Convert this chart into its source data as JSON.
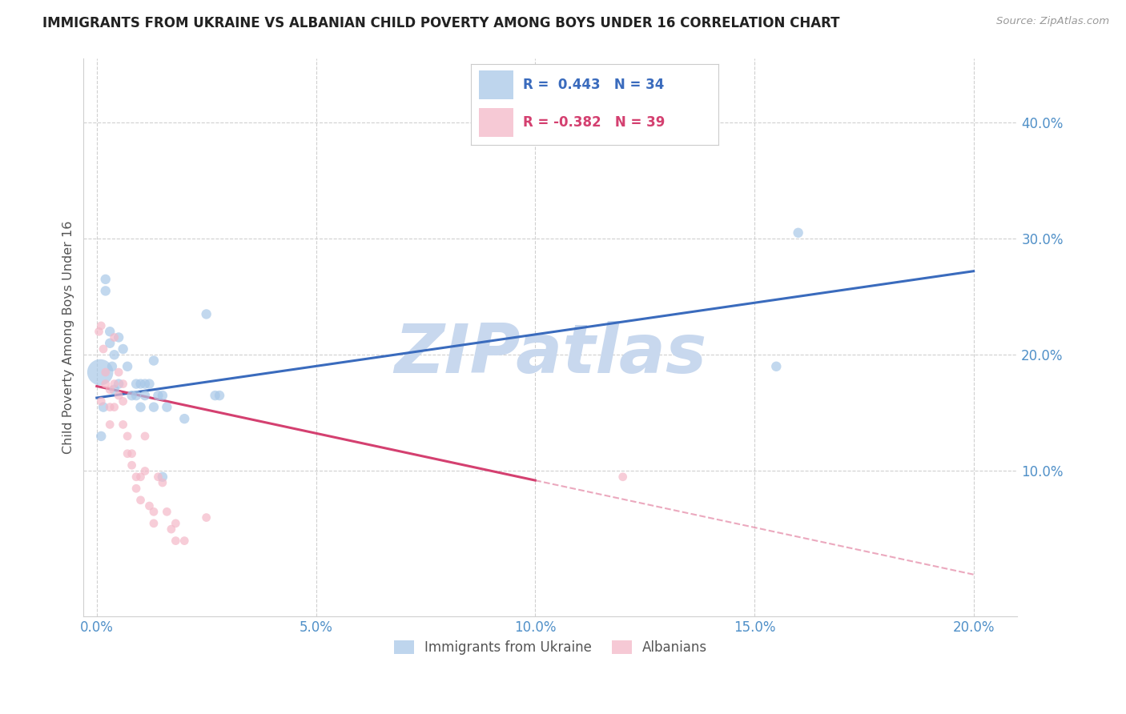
{
  "title": "IMMIGRANTS FROM UKRAINE VS ALBANIAN CHILD POVERTY AMONG BOYS UNDER 16 CORRELATION CHART",
  "source": "Source: ZipAtlas.com",
  "ylabel": "Child Poverty Among Boys Under 16",
  "x_tick_labels": [
    "0.0%",
    "5.0%",
    "10.0%",
    "15.0%",
    "20.0%"
  ],
  "x_tick_values": [
    0.0,
    0.05,
    0.1,
    0.15,
    0.2
  ],
  "y_tick_labels": [
    "10.0%",
    "20.0%",
    "30.0%",
    "40.0%"
  ],
  "y_tick_values": [
    0.1,
    0.2,
    0.3,
    0.4
  ],
  "xlim": [
    -0.003,
    0.21
  ],
  "ylim": [
    -0.025,
    0.455
  ],
  "legend_label1": "R =  0.443   N = 34",
  "legend_label2": "R = -0.382   N = 39",
  "legend_bottom1": "Immigrants from Ukraine",
  "legend_bottom2": "Albanians",
  "ukraine_fill": "#a8c8e8",
  "albanian_fill": "#f4b8c8",
  "ukraine_line": "#3a6bbd",
  "albanian_line": "#d44070",
  "bg_color": "#ffffff",
  "grid_color": "#d0d0d0",
  "watermark": "ZIPatlas",
  "watermark_color": "#c8d8ee",
  "title_color": "#222222",
  "tick_color": "#5090c8",
  "ylabel_color": "#555555",
  "source_color": "#999999",
  "ukraine_line_x0": 0.0,
  "ukraine_line_x1": 0.2,
  "ukraine_line_y0": 0.163,
  "ukraine_line_y1": 0.272,
  "albanian_line_x0": 0.0,
  "albanian_line_x1": 0.1,
  "albanian_line_xdash0": 0.1,
  "albanian_line_xdash1": 0.2,
  "albanian_line_y0": 0.173,
  "albanian_line_y1": 0.092,
  "albanian_line_ydash0": 0.092,
  "albanian_line_ydash1": 0.011,
  "ukraine_x": [
    0.0008,
    0.001,
    0.0015,
    0.002,
    0.002,
    0.003,
    0.003,
    0.0035,
    0.004,
    0.004,
    0.005,
    0.005,
    0.006,
    0.007,
    0.008,
    0.009,
    0.009,
    0.01,
    0.01,
    0.011,
    0.011,
    0.012,
    0.013,
    0.013,
    0.014,
    0.015,
    0.015,
    0.016,
    0.02,
    0.025,
    0.027,
    0.028,
    0.155,
    0.16
  ],
  "ukraine_y": [
    0.185,
    0.13,
    0.155,
    0.255,
    0.265,
    0.21,
    0.22,
    0.19,
    0.17,
    0.2,
    0.175,
    0.215,
    0.205,
    0.19,
    0.165,
    0.175,
    0.165,
    0.175,
    0.155,
    0.175,
    0.165,
    0.175,
    0.195,
    0.155,
    0.165,
    0.165,
    0.095,
    0.155,
    0.145,
    0.235,
    0.165,
    0.165,
    0.19,
    0.305
  ],
  "ukraine_sizes": [
    550,
    80,
    80,
    80,
    80,
    80,
    80,
    80,
    80,
    80,
    80,
    80,
    80,
    80,
    80,
    80,
    80,
    80,
    80,
    80,
    80,
    80,
    80,
    80,
    80,
    80,
    80,
    80,
    80,
    80,
    80,
    80,
    80,
    80
  ],
  "albanian_x": [
    0.0005,
    0.001,
    0.001,
    0.0015,
    0.002,
    0.002,
    0.003,
    0.003,
    0.003,
    0.004,
    0.004,
    0.004,
    0.005,
    0.005,
    0.006,
    0.006,
    0.006,
    0.007,
    0.007,
    0.008,
    0.008,
    0.009,
    0.009,
    0.01,
    0.01,
    0.011,
    0.011,
    0.012,
    0.013,
    0.013,
    0.014,
    0.015,
    0.016,
    0.017,
    0.018,
    0.018,
    0.02,
    0.025,
    0.12
  ],
  "albanian_y": [
    0.22,
    0.225,
    0.16,
    0.205,
    0.175,
    0.185,
    0.17,
    0.155,
    0.14,
    0.215,
    0.175,
    0.155,
    0.185,
    0.165,
    0.175,
    0.16,
    0.14,
    0.13,
    0.115,
    0.115,
    0.105,
    0.095,
    0.085,
    0.095,
    0.075,
    0.13,
    0.1,
    0.07,
    0.055,
    0.065,
    0.095,
    0.09,
    0.065,
    0.05,
    0.04,
    0.055,
    0.04,
    0.06,
    0.095
  ],
  "albanian_sizes": [
    60,
    60,
    60,
    60,
    60,
    60,
    60,
    60,
    60,
    60,
    60,
    60,
    60,
    60,
    60,
    60,
    60,
    60,
    60,
    60,
    60,
    60,
    60,
    60,
    60,
    60,
    60,
    60,
    60,
    60,
    60,
    60,
    60,
    60,
    60,
    60,
    60,
    60,
    60
  ]
}
